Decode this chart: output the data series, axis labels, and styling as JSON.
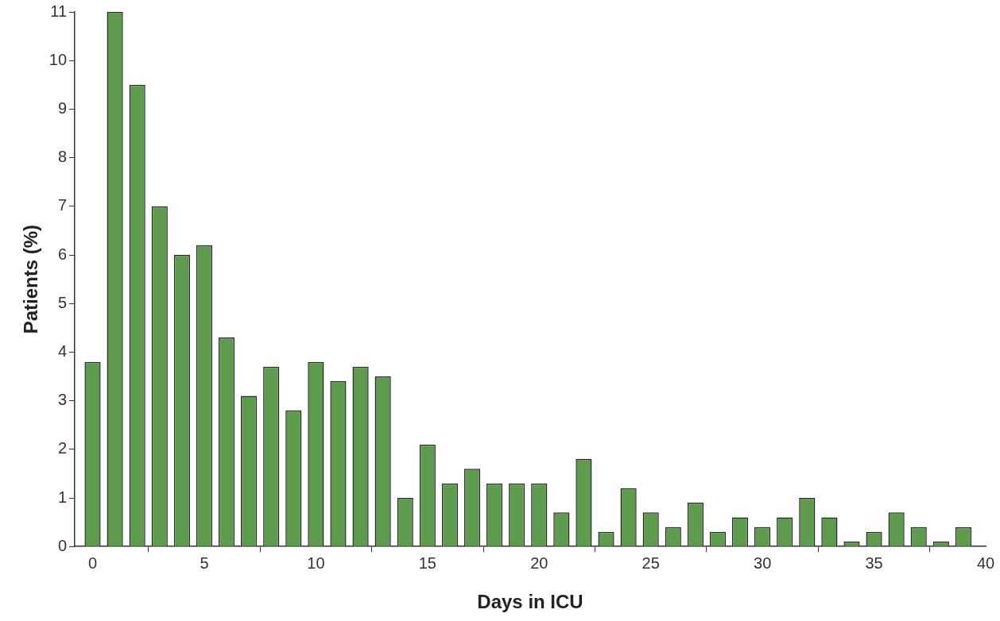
{
  "chart_data": {
    "type": "bar",
    "xlabel": "Days in ICU",
    "ylabel": "Patients (%)",
    "x": [
      0,
      1,
      2,
      3,
      4,
      5,
      6,
      7,
      8,
      9,
      10,
      11,
      12,
      13,
      14,
      15,
      16,
      17,
      18,
      19,
      20,
      21,
      22,
      23,
      24,
      25,
      26,
      27,
      28,
      29,
      30,
      31,
      32,
      33,
      34,
      35,
      36,
      37,
      38,
      39
    ],
    "values": [
      3.8,
      11,
      9.5,
      7,
      6,
      6.2,
      4.3,
      3.1,
      3.7,
      2.8,
      3.8,
      3.4,
      3.7,
      3.5,
      1.0,
      2.1,
      1.3,
      1.6,
      1.3,
      1.3,
      1.3,
      0.7,
      1.8,
      0.3,
      1.2,
      0.7,
      0.4,
      0.9,
      0.3,
      0.6,
      0.4,
      0.6,
      1.0,
      0.6,
      0.1,
      0.3,
      0.7,
      0.4,
      0.1,
      0.4
    ],
    "color": "#5f9b4f",
    "xlim": [
      -0.8,
      40
    ],
    "xticks": [
      0,
      5,
      10,
      15,
      20,
      25,
      30,
      35,
      40
    ],
    "ylim": [
      0,
      11
    ],
    "yticks": [
      0,
      1,
      2,
      3,
      4,
      5,
      6,
      7,
      8,
      9,
      10,
      11
    ],
    "grid": false,
    "legend": false
  }
}
